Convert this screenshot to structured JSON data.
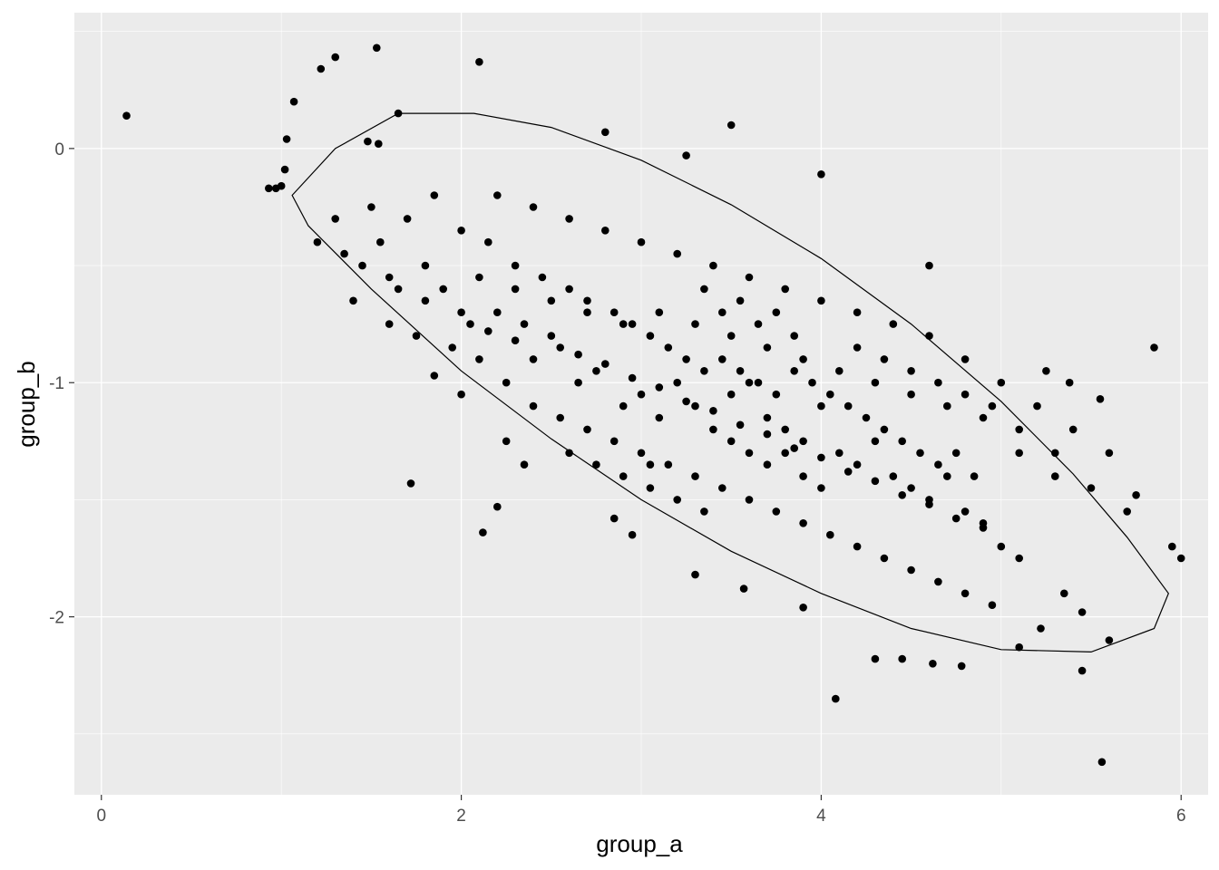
{
  "chart_data": {
    "type": "scatter",
    "title": "",
    "xlabel": "group_a",
    "ylabel": "group_b",
    "xlim": [
      -0.15,
      6.15
    ],
    "ylim": [
      -2.76,
      0.58
    ],
    "x_ticks": [
      0,
      2,
      4,
      6
    ],
    "y_ticks": [
      0,
      -1,
      -2
    ],
    "x_tick_labels": [
      "0",
      "2",
      "4",
      "6"
    ],
    "y_tick_labels": [
      "0",
      "-1",
      "-2"
    ],
    "grid": true,
    "background": "#ebebeb",
    "gridline_color": "#ffffff",
    "point_color": "#000000",
    "ellipse": {
      "type": "confidence-ellipse",
      "center": [
        3.49,
        -1.02
      ],
      "boundary": [
        [
          1.06,
          -0.2
        ],
        [
          1.3,
          0.0
        ],
        [
          1.65,
          0.15
        ],
        [
          2.07,
          0.15
        ],
        [
          2.5,
          0.09
        ],
        [
          3.0,
          -0.05
        ],
        [
          3.5,
          -0.24
        ],
        [
          4.0,
          -0.47
        ],
        [
          4.5,
          -0.75
        ],
        [
          5.0,
          -1.08
        ],
        [
          5.4,
          -1.39
        ],
        [
          5.7,
          -1.66
        ],
        [
          5.93,
          -1.9
        ],
        [
          5.85,
          -2.05
        ],
        [
          5.5,
          -2.15
        ],
        [
          5.0,
          -2.14
        ],
        [
          4.5,
          -2.05
        ],
        [
          4.0,
          -1.9
        ],
        [
          3.5,
          -1.72
        ],
        [
          3.0,
          -1.5
        ],
        [
          2.5,
          -1.24
        ],
        [
          2.0,
          -0.95
        ],
        [
          1.5,
          -0.6
        ],
        [
          1.15,
          -0.33
        ]
      ]
    },
    "points": [
      [
        0.14,
        0.14
      ],
      [
        1.53,
        0.43
      ],
      [
        1.3,
        0.39
      ],
      [
        1.22,
        0.34
      ],
      [
        2.1,
        0.37
      ],
      [
        1.07,
        0.2
      ],
      [
        1.65,
        0.15
      ],
      [
        1.03,
        0.04
      ],
      [
        1.48,
        0.03
      ],
      [
        1.54,
        0.02
      ],
      [
        1.02,
        -0.09
      ],
      [
        0.97,
        -0.17
      ],
      [
        0.93,
        -0.17
      ],
      [
        1.0,
        -0.16
      ],
      [
        2.8,
        0.07
      ],
      [
        3.5,
        0.1
      ],
      [
        3.25,
        -0.03
      ],
      [
        4.0,
        -0.11
      ],
      [
        4.6,
        -0.5
      ],
      [
        5.85,
        -0.85
      ],
      [
        1.72,
        -1.43
      ],
      [
        2.2,
        -1.53
      ],
      [
        2.12,
        -1.64
      ],
      [
        5.56,
        -2.62
      ],
      [
        4.08,
        -2.35
      ],
      [
        5.45,
        -2.23
      ],
      [
        4.3,
        -2.18
      ],
      [
        4.45,
        -2.18
      ],
      [
        4.62,
        -2.2
      ],
      [
        4.78,
        -2.21
      ],
      [
        5.1,
        -2.13
      ],
      [
        5.6,
        -2.1
      ],
      [
        5.95,
        -1.7
      ],
      [
        6.0,
        -1.75
      ],
      [
        3.9,
        -1.96
      ],
      [
        3.3,
        -1.82
      ],
      [
        3.57,
        -1.88
      ],
      [
        2.85,
        -1.58
      ],
      [
        2.95,
        -1.65
      ],
      [
        3.05,
        -1.35
      ],
      [
        1.85,
        -0.97
      ],
      [
        2.0,
        -1.05
      ],
      [
        2.35,
        -1.35
      ],
      [
        2.25,
        -1.25
      ],
      [
        5.3,
        -1.4
      ],
      [
        5.38,
        -1.0
      ],
      [
        5.25,
        -0.95
      ],
      [
        5.1,
        -1.3
      ],
      [
        5.55,
        -1.07
      ],
      [
        5.7,
        -1.55
      ],
      [
        5.75,
        -1.48
      ],
      [
        5.35,
        -1.9
      ],
      [
        5.45,
        -1.98
      ],
      [
        5.22,
        -2.05
      ],
      [
        1.3,
        -0.3
      ],
      [
        1.35,
        -0.45
      ],
      [
        1.55,
        -0.4
      ],
      [
        1.6,
        -0.55
      ],
      [
        1.8,
        -0.5
      ],
      [
        1.9,
        -0.6
      ],
      [
        2.05,
        -0.75
      ],
      [
        2.2,
        -0.7
      ],
      [
        2.3,
        -0.82
      ],
      [
        2.4,
        -0.9
      ],
      [
        2.55,
        -0.85
      ],
      [
        2.65,
        -1.0
      ],
      [
        2.75,
        -0.95
      ],
      [
        2.9,
        -1.1
      ],
      [
        3.0,
        -1.05
      ],
      [
        3.1,
        -1.15
      ],
      [
        3.2,
        -1.0
      ],
      [
        3.3,
        -1.1
      ],
      [
        3.4,
        -1.2
      ],
      [
        3.5,
        -1.05
      ],
      [
        3.6,
        -1.0
      ],
      [
        3.7,
        -1.15
      ],
      [
        3.8,
        -1.2
      ],
      [
        3.9,
        -1.25
      ],
      [
        4.0,
        -1.1
      ],
      [
        4.1,
        -1.3
      ],
      [
        4.2,
        -1.35
      ],
      [
        4.3,
        -1.25
      ],
      [
        4.4,
        -1.4
      ],
      [
        4.5,
        -1.45
      ],
      [
        4.6,
        -1.5
      ],
      [
        4.7,
        -1.4
      ],
      [
        4.8,
        -1.55
      ],
      [
        4.9,
        -1.6
      ],
      [
        5.0,
        -1.7
      ],
      [
        5.1,
        -1.75
      ],
      [
        1.5,
        -0.25
      ],
      [
        1.7,
        -0.3
      ],
      [
        1.85,
        -0.2
      ],
      [
        2.0,
        -0.35
      ],
      [
        2.15,
        -0.4
      ],
      [
        2.3,
        -0.5
      ],
      [
        2.45,
        -0.55
      ],
      [
        2.6,
        -0.6
      ],
      [
        2.7,
        -0.65
      ],
      [
        2.85,
        -0.7
      ],
      [
        2.95,
        -0.75
      ],
      [
        3.05,
        -0.8
      ],
      [
        3.15,
        -0.85
      ],
      [
        3.25,
        -0.9
      ],
      [
        3.35,
        -0.95
      ],
      [
        3.45,
        -0.9
      ],
      [
        3.55,
        -0.95
      ],
      [
        3.65,
        -1.0
      ],
      [
        3.75,
        -1.05
      ],
      [
        3.85,
        -0.95
      ],
      [
        3.95,
        -1.0
      ],
      [
        4.05,
        -1.05
      ],
      [
        4.15,
        -1.1
      ],
      [
        4.25,
        -1.15
      ],
      [
        4.35,
        -1.2
      ],
      [
        4.45,
        -1.25
      ],
      [
        4.55,
        -1.3
      ],
      [
        4.65,
        -1.35
      ],
      [
        4.75,
        -1.3
      ],
      [
        4.85,
        -1.4
      ],
      [
        1.4,
        -0.65
      ],
      [
        1.6,
        -0.75
      ],
      [
        1.75,
        -0.8
      ],
      [
        1.95,
        -0.85
      ],
      [
        2.1,
        -0.9
      ],
      [
        2.25,
        -1.0
      ],
      [
        2.4,
        -1.1
      ],
      [
        2.55,
        -1.15
      ],
      [
        2.7,
        -1.2
      ],
      [
        2.85,
        -1.25
      ],
      [
        3.0,
        -1.3
      ],
      [
        3.15,
        -1.35
      ],
      [
        3.3,
        -1.4
      ],
      [
        3.45,
        -1.45
      ],
      [
        3.6,
        -1.5
      ],
      [
        3.75,
        -1.55
      ],
      [
        3.9,
        -1.6
      ],
      [
        4.05,
        -1.65
      ],
      [
        4.2,
        -1.7
      ],
      [
        4.35,
        -1.75
      ],
      [
        4.5,
        -1.8
      ],
      [
        4.65,
        -1.85
      ],
      [
        4.8,
        -1.9
      ],
      [
        4.95,
        -1.95
      ],
      [
        2.2,
        -0.2
      ],
      [
        2.4,
        -0.25
      ],
      [
        2.6,
        -0.3
      ],
      [
        2.8,
        -0.35
      ],
      [
        3.0,
        -0.4
      ],
      [
        3.2,
        -0.45
      ],
      [
        3.4,
        -0.5
      ],
      [
        3.6,
        -0.55
      ],
      [
        3.8,
        -0.6
      ],
      [
        4.0,
        -0.65
      ],
      [
        4.2,
        -0.7
      ],
      [
        4.4,
        -0.75
      ],
      [
        4.6,
        -0.8
      ],
      [
        4.8,
        -0.9
      ],
      [
        5.0,
        -1.0
      ],
      [
        5.2,
        -1.1
      ],
      [
        5.4,
        -1.2
      ],
      [
        5.6,
        -1.3
      ],
      [
        1.2,
        -0.4
      ],
      [
        1.45,
        -0.5
      ],
      [
        1.65,
        -0.6
      ],
      [
        1.8,
        -0.65
      ],
      [
        2.0,
        -0.7
      ],
      [
        2.15,
        -0.78
      ],
      [
        2.35,
        -0.75
      ],
      [
        2.5,
        -0.8
      ],
      [
        2.65,
        -0.88
      ],
      [
        2.8,
        -0.92
      ],
      [
        2.95,
        -0.98
      ],
      [
        3.1,
        -1.02
      ],
      [
        3.25,
        -1.08
      ],
      [
        3.4,
        -1.12
      ],
      [
        3.55,
        -1.18
      ],
      [
        3.7,
        -1.22
      ],
      [
        3.85,
        -1.28
      ],
      [
        4.0,
        -1.32
      ],
      [
        4.15,
        -1.38
      ],
      [
        4.3,
        -1.42
      ],
      [
        4.45,
        -1.48
      ],
      [
        4.6,
        -1.52
      ],
      [
        4.75,
        -1.58
      ],
      [
        4.9,
        -1.62
      ],
      [
        2.1,
        -0.55
      ],
      [
        2.3,
        -0.6
      ],
      [
        2.5,
        -0.65
      ],
      [
        2.7,
        -0.7
      ],
      [
        2.9,
        -0.75
      ],
      [
        3.1,
        -0.7
      ],
      [
        3.3,
        -0.75
      ],
      [
        3.5,
        -0.8
      ],
      [
        3.7,
        -0.85
      ],
      [
        3.9,
        -0.9
      ],
      [
        4.1,
        -0.95
      ],
      [
        4.3,
        -1.0
      ],
      [
        4.5,
        -1.05
      ],
      [
        4.7,
        -1.1
      ],
      [
        4.9,
        -1.15
      ],
      [
        5.1,
        -1.2
      ],
      [
        5.3,
        -1.3
      ],
      [
        5.5,
        -1.45
      ],
      [
        3.35,
        -0.6
      ],
      [
        3.45,
        -0.7
      ],
      [
        3.55,
        -0.65
      ],
      [
        3.65,
        -0.75
      ],
      [
        3.75,
        -0.7
      ],
      [
        3.85,
        -0.8
      ],
      [
        3.5,
        -1.25
      ],
      [
        3.6,
        -1.3
      ],
      [
        3.7,
        -1.35
      ],
      [
        3.8,
        -1.3
      ],
      [
        3.9,
        -1.4
      ],
      [
        4.0,
        -1.45
      ],
      [
        2.6,
        -1.3
      ],
      [
        2.75,
        -1.35
      ],
      [
        2.9,
        -1.4
      ],
      [
        3.05,
        -1.45
      ],
      [
        3.2,
        -1.5
      ],
      [
        3.35,
        -1.55
      ],
      [
        4.2,
        -0.85
      ],
      [
        4.35,
        -0.9
      ],
      [
        4.5,
        -0.95
      ],
      [
        4.65,
        -1.0
      ],
      [
        4.8,
        -1.05
      ],
      [
        4.95,
        -1.1
      ]
    ]
  }
}
